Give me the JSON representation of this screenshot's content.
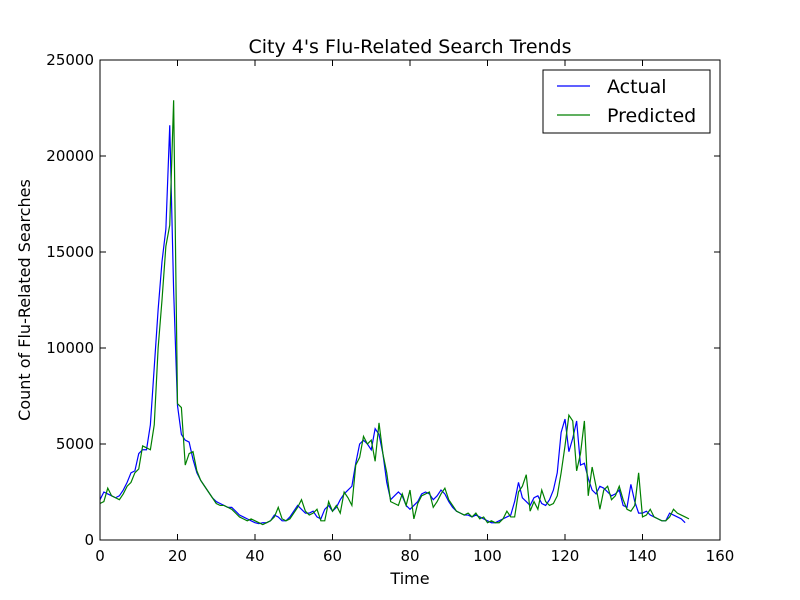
{
  "chart_data": {
    "type": "line",
    "title": "City 4's Flu-Related Search Trends",
    "xlabel": "Time",
    "ylabel": "Count of Flu-Related Searches",
    "xlim": [
      0,
      160
    ],
    "ylim": [
      0,
      25000
    ],
    "xticks": [
      "0",
      "20",
      "40",
      "60",
      "80",
      "100",
      "120",
      "140",
      "160"
    ],
    "yticks": [
      "0",
      "5000",
      "10000",
      "15000",
      "20000",
      "25000"
    ],
    "legend_position": "top-right",
    "grid": false,
    "series": [
      {
        "name": "Actual",
        "color": "#0000ff",
        "values": [
          2100,
          2500,
          2400,
          2300,
          2200,
          2300,
          2600,
          3000,
          3500,
          3600,
          4500,
          4700,
          4700,
          6000,
          9000,
          12000,
          14500,
          16200,
          21600,
          13000,
          7000,
          5500,
          5200,
          5100,
          4200,
          3500,
          3100,
          2800,
          2500,
          2200,
          2000,
          1900,
          1800,
          1700,
          1700,
          1500,
          1300,
          1200,
          1100,
          1000,
          900,
          850,
          900,
          900,
          1000,
          1300,
          1200,
          1000,
          1000,
          1200,
          1500,
          1800,
          1600,
          1400,
          1400,
          1500,
          1200,
          1100,
          1600,
          1800,
          1500,
          1700,
          2100,
          2400,
          2600,
          2800,
          4000,
          5000,
          5200,
          5000,
          4700,
          5800,
          5500,
          4500,
          3000,
          2100,
          2300,
          2500,
          2300,
          1800,
          1600,
          1800,
          2000,
          2400,
          2500,
          2400,
          2100,
          2300,
          2600,
          2400,
          2000,
          1700,
          1500,
          1400,
          1300,
          1300,
          1200,
          1300,
          1200,
          1100,
          1000,
          900,
          900,
          1000,
          1100,
          1200,
          1300,
          2000,
          3000,
          2200,
          2000,
          1800,
          2200,
          2300,
          1900,
          1800,
          2100,
          2600,
          3500,
          5600,
          6300,
          4600,
          5300,
          6200,
          3900,
          4000,
          3200,
          2600,
          2400,
          2800,
          2700,
          2500,
          2300,
          2400,
          2600,
          1800,
          1700,
          2900,
          2000,
          1400,
          1400,
          1500,
          1300,
          1200,
          1100,
          1000,
          1000,
          1400,
          1300,
          1200,
          1100,
          900
        ]
      },
      {
        "name": "Predicted",
        "color": "#008000",
        "values": [
          1900,
          2000,
          2700,
          2300,
          2200,
          2100,
          2400,
          2800,
          3000,
          3500,
          3700,
          4900,
          4800,
          4700,
          6000,
          10000,
          12500,
          15300,
          16400,
          22900,
          7100,
          6900,
          3900,
          4500,
          4600,
          3600,
          3100,
          2800,
          2500,
          2200,
          1900,
          1800,
          1800,
          1700,
          1600,
          1400,
          1200,
          1100,
          1000,
          1100,
          1000,
          900,
          800,
          900,
          1000,
          1200,
          1700,
          1100,
          1000,
          1100,
          1400,
          1700,
          2100,
          1500,
          1300,
          1400,
          1600,
          1000,
          1000,
          2000,
          1500,
          1800,
          1400,
          2500,
          2200,
          1800,
          3900,
          4300,
          5400,
          5000,
          5200,
          4100,
          6100,
          4500,
          3500,
          2000,
          1900,
          1800,
          2400,
          1800,
          2600,
          1100,
          1900,
          2300,
          2400,
          2500,
          1700,
          2000,
          2400,
          2700,
          2100,
          1800,
          1500,
          1400,
          1300,
          1400,
          1200,
          1400,
          1100,
          1200,
          900,
          1000,
          900,
          900,
          1100,
          1500,
          1200,
          1200,
          2500,
          2800,
          3400,
          1500,
          2000,
          1600,
          2600,
          2000,
          1800,
          1900,
          2300,
          3500,
          4900,
          6500,
          6200,
          3600,
          4500,
          6200,
          2300,
          3800,
          2800,
          1600,
          2600,
          2800,
          2100,
          2300,
          2800,
          2100,
          1600,
          1500,
          1800,
          3500,
          1200,
          1300,
          1600,
          1200,
          1100,
          1000,
          1000,
          1200,
          1600,
          1400,
          1300,
          1200,
          1100
        ]
      }
    ]
  }
}
